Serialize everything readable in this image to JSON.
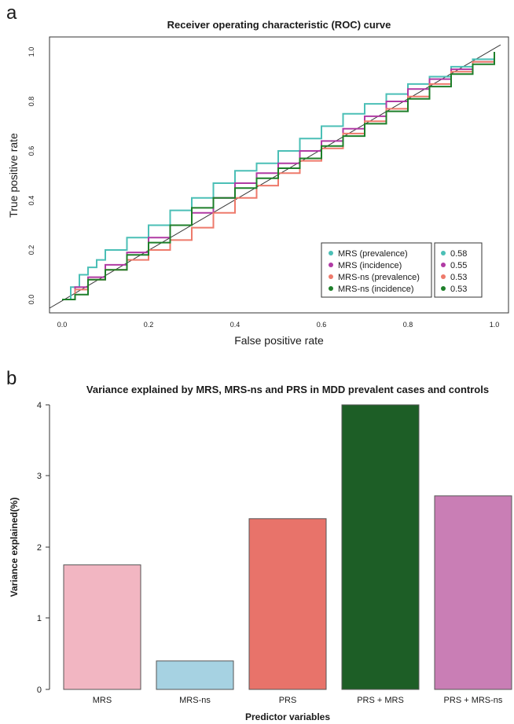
{
  "chart_data": [
    {
      "type": "line",
      "panel_label": "a",
      "title": "Receiver operating characteristic (ROC) curve",
      "xlabel": "False positive rate",
      "ylabel": "True positive rate",
      "xlim": [
        0,
        1
      ],
      "ylim": [
        0,
        1
      ],
      "xticks": [
        "0.0",
        "0.2",
        "0.4",
        "0.6",
        "0.8",
        "1.0"
      ],
      "yticks": [
        "0.0",
        "0.2",
        "0.4",
        "0.6",
        "0.8",
        "1.0"
      ],
      "grid": false,
      "legend_position": "bottom-right",
      "diagonal_reference": true,
      "series": [
        {
          "name": "MRS (prevalence)",
          "auc_label": "0.58",
          "color": "#4BBFB6",
          "x": [
            0,
            0.02,
            0.04,
            0.06,
            0.08,
            0.1,
            0.15,
            0.2,
            0.25,
            0.3,
            0.35,
            0.4,
            0.45,
            0.5,
            0.55,
            0.6,
            0.65,
            0.7,
            0.75,
            0.8,
            0.85,
            0.9,
            0.95,
            1.0
          ],
          "y": [
            0,
            0.05,
            0.1,
            0.13,
            0.16,
            0.2,
            0.25,
            0.3,
            0.36,
            0.41,
            0.47,
            0.52,
            0.55,
            0.6,
            0.65,
            0.7,
            0.75,
            0.79,
            0.83,
            0.87,
            0.9,
            0.94,
            0.97,
            1.0
          ]
        },
        {
          "name": "MRS (incidence)",
          "auc_label": "0.55",
          "color": "#B03AA4",
          "x": [
            0,
            0.03,
            0.06,
            0.1,
            0.15,
            0.2,
            0.25,
            0.3,
            0.35,
            0.4,
            0.45,
            0.5,
            0.55,
            0.6,
            0.65,
            0.7,
            0.75,
            0.8,
            0.85,
            0.9,
            0.95,
            1.0
          ],
          "y": [
            0,
            0.05,
            0.09,
            0.14,
            0.19,
            0.25,
            0.3,
            0.35,
            0.41,
            0.47,
            0.51,
            0.55,
            0.6,
            0.64,
            0.69,
            0.74,
            0.8,
            0.85,
            0.89,
            0.93,
            0.96,
            1.0
          ]
        },
        {
          "name": "MRS-ns (prevalence)",
          "auc_label": "0.53",
          "color": "#EE7A6B",
          "x": [
            0,
            0.03,
            0.06,
            0.1,
            0.15,
            0.2,
            0.25,
            0.3,
            0.35,
            0.4,
            0.45,
            0.5,
            0.55,
            0.6,
            0.65,
            0.7,
            0.75,
            0.8,
            0.85,
            0.9,
            0.95,
            1.0
          ],
          "y": [
            0,
            0.04,
            0.08,
            0.12,
            0.16,
            0.2,
            0.24,
            0.29,
            0.35,
            0.41,
            0.46,
            0.51,
            0.56,
            0.61,
            0.67,
            0.72,
            0.77,
            0.82,
            0.87,
            0.92,
            0.96,
            1.0
          ]
        },
        {
          "name": "MRS-ns (incidence)",
          "auc_label": "0.53",
          "color": "#1E7F2A",
          "x": [
            0,
            0.03,
            0.06,
            0.1,
            0.15,
            0.2,
            0.25,
            0.3,
            0.35,
            0.4,
            0.45,
            0.5,
            0.55,
            0.6,
            0.65,
            0.7,
            0.75,
            0.8,
            0.85,
            0.9,
            0.95,
            1.0
          ],
          "y": [
            0,
            0.02,
            0.08,
            0.12,
            0.18,
            0.23,
            0.3,
            0.37,
            0.41,
            0.45,
            0.49,
            0.53,
            0.57,
            0.62,
            0.66,
            0.71,
            0.76,
            0.81,
            0.86,
            0.91,
            0.95,
            1.0
          ]
        }
      ]
    },
    {
      "type": "bar",
      "panel_label": "b",
      "title": "Variance explained by MRS, MRS-ns and PRS in MDD prevalent cases and controls",
      "xlabel": "Predictor variables",
      "ylabel": "Variance explained(%)",
      "ylim": [
        0,
        4
      ],
      "yticks": [
        "0",
        "1",
        "2",
        "3",
        "4"
      ],
      "grid": false,
      "categories": [
        "MRS",
        "MRS-ns",
        "PRS",
        "PRS + MRS",
        "PRS + MRS-ns"
      ],
      "values": [
        1.75,
        0.4,
        2.4,
        4.0,
        2.72
      ],
      "colors": [
        "#F2B6C2",
        "#A6D2E2",
        "#E8736A",
        "#1D5E26",
        "#C97EB5"
      ]
    }
  ]
}
